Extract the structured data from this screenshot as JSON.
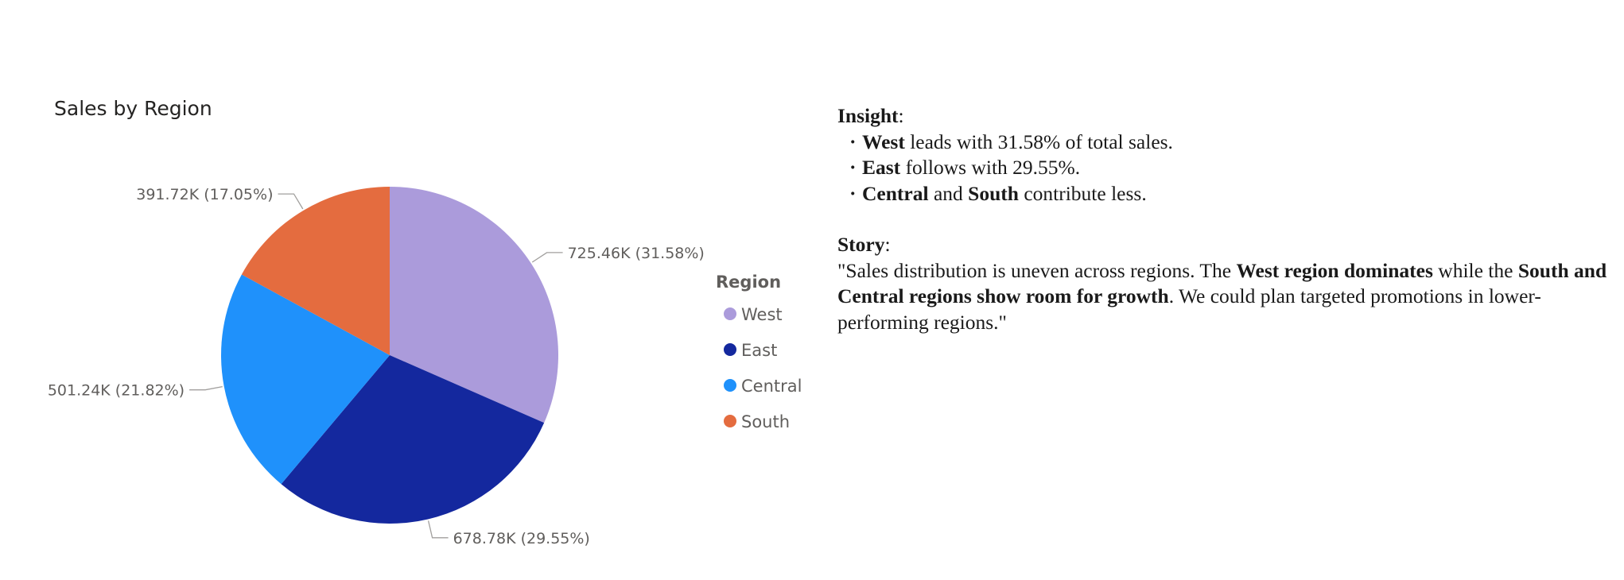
{
  "chart_data": {
    "type": "pie",
    "title": "Sales by Region",
    "legend_title": "Region",
    "legend_placement": "right",
    "start_angle_deg": 0,
    "direction": "clockwise",
    "slices": [
      {
        "name": "West",
        "value": 725.46,
        "label": "725.46K (31.58%)",
        "percent": 31.58,
        "color": "#ab9bdb"
      },
      {
        "name": "East",
        "value": 678.78,
        "label": "678.78K (29.55%)",
        "percent": 29.55,
        "color": "#14289e"
      },
      {
        "name": "Central",
        "value": 501.24,
        "label": "501.24K (21.82%)",
        "percent": 21.82,
        "color": "#1f91fb"
      },
      {
        "name": "South",
        "value": 391.72,
        "label": "391.72K (17.05%)",
        "percent": 17.05,
        "color": "#e46c3f"
      }
    ]
  },
  "insight": {
    "heading": "Insight",
    "items": [
      {
        "bold": "West",
        "text": " leads with 31.58% of total sales."
      },
      {
        "bold": "East",
        "text": " follows with 29.55%."
      },
      {
        "bold": "Central",
        "text": " and ",
        "bold2": "South",
        "text2": " contribute less."
      }
    ]
  },
  "story": {
    "heading": "Story",
    "part1": "\"Sales distribution is uneven across regions. The ",
    "bold1": "West region dominates",
    "part2": " while the ",
    "bold2": "South and Central regions show room for growth",
    "part3": ". We could plan targeted promotions in lower-performing regions.\""
  }
}
